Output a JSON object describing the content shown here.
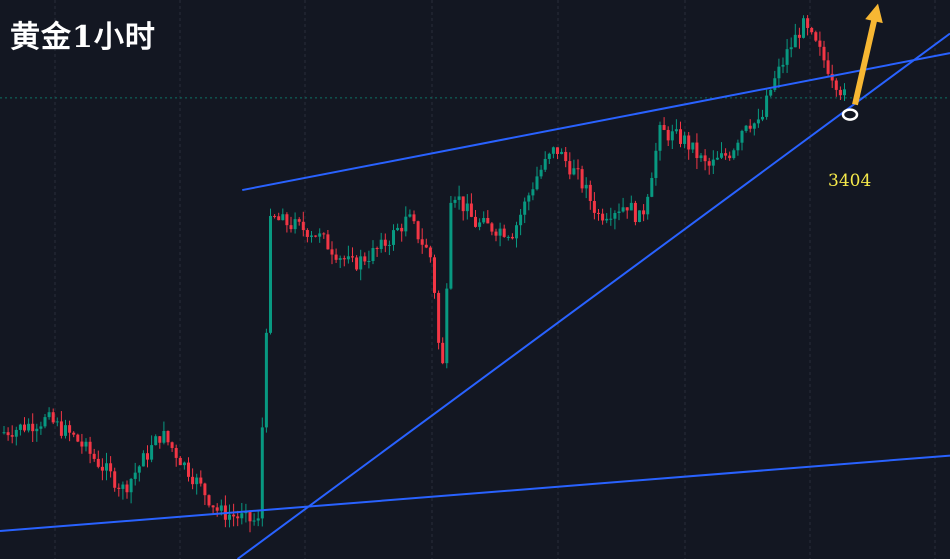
{
  "title": "黄金1小时",
  "annotation": {
    "price_label": "3404"
  },
  "colors": {
    "background": "#131722",
    "grid": "#2a2e39",
    "up_candle": "#089981",
    "down_candle": "#f23645",
    "trendline": "#2962ff",
    "arrow": "#f7b733",
    "marker": "#ffffff",
    "label": "#f5e94a"
  },
  "chart_data": {
    "type": "candlestick",
    "title": "黄金1小时",
    "xlabel": "",
    "ylabel": "",
    "timeframe": "1h",
    "ylim": [
      3245,
      3445
    ],
    "y_per_px": 0.357,
    "grid": true,
    "key_level": 3404,
    "trend_channel": {
      "upper": [
        [
          0.255,
          3377
        ],
        [
          1.0,
          3426
        ]
      ],
      "lower": [
        [
          0.25,
          3245
        ],
        [
          1.0,
          3433
        ]
      ],
      "base": [
        [
          0.0,
          3255
        ],
        [
          1.0,
          3282
        ]
      ]
    },
    "anchors": [
      {
        "x": 0.0,
        "close": 3290
      },
      {
        "x": 0.05,
        "close": 3295
      },
      {
        "x": 0.08,
        "close": 3288
      },
      {
        "x": 0.13,
        "close": 3270
      },
      {
        "x": 0.17,
        "close": 3290
      },
      {
        "x": 0.23,
        "close": 3262
      },
      {
        "x": 0.272,
        "close": 3258
      },
      {
        "x": 0.285,
        "close": 3367
      },
      {
        "x": 0.33,
        "close": 3362
      },
      {
        "x": 0.37,
        "close": 3350
      },
      {
        "x": 0.4,
        "close": 3356
      },
      {
        "x": 0.43,
        "close": 3367
      },
      {
        "x": 0.455,
        "close": 3352
      },
      {
        "x": 0.465,
        "close": 3307
      },
      {
        "x": 0.475,
        "close": 3378
      },
      {
        "x": 0.5,
        "close": 3365
      },
      {
        "x": 0.54,
        "close": 3362
      },
      {
        "x": 0.565,
        "close": 3382
      },
      {
        "x": 0.585,
        "close": 3392
      },
      {
        "x": 0.61,
        "close": 3381
      },
      {
        "x": 0.63,
        "close": 3368
      },
      {
        "x": 0.66,
        "close": 3372
      },
      {
        "x": 0.675,
        "close": 3366
      },
      {
        "x": 0.695,
        "close": 3398
      },
      {
        "x": 0.72,
        "close": 3395
      },
      {
        "x": 0.745,
        "close": 3385
      },
      {
        "x": 0.77,
        "close": 3391
      },
      {
        "x": 0.785,
        "close": 3402
      },
      {
        "x": 0.8,
        "close": 3400
      },
      {
        "x": 0.81,
        "close": 3412
      },
      {
        "x": 0.83,
        "close": 3427
      },
      {
        "x": 0.845,
        "close": 3436
      },
      {
        "x": 0.86,
        "close": 3428
      },
      {
        "x": 0.875,
        "close": 3419
      },
      {
        "x": 0.89,
        "close": 3410
      }
    ],
    "forecast": {
      "from_price": 3404,
      "direction": "up",
      "target": 3443
    }
  }
}
